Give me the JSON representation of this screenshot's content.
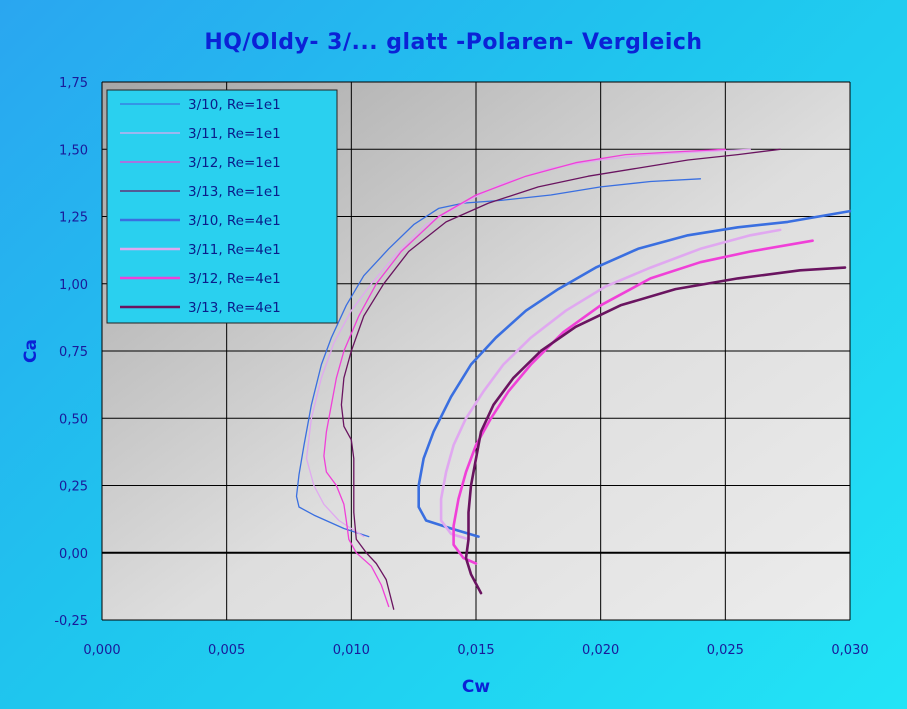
{
  "chart_data": {
    "type": "line",
    "title": "HQ/Oldy- 3/...  glatt -Polaren- Vergleich",
    "xlabel": "Cw",
    "ylabel": "Ca",
    "xlim": [
      0.0,
      0.03
    ],
    "ylim": [
      -0.25,
      1.75
    ],
    "x_ticks": [
      "0,000",
      "0,005",
      "0,010",
      "0,015",
      "0,020",
      "0,025",
      "0,030"
    ],
    "y_ticks": [
      "-0,25",
      "0,00",
      "0,25",
      "0,50",
      "0,75",
      "1,00",
      "1,25",
      "1,50",
      "1,75"
    ],
    "grid": true,
    "legend_position": "top-left",
    "series": [
      {
        "name": "3/10, Re=1e1",
        "color": "#3a6fe0",
        "width": 1.3,
        "points": [
          [
            0.0107,
            0.06
          ],
          [
            0.0097,
            0.09
          ],
          [
            0.0085,
            0.14
          ],
          [
            0.0079,
            0.17
          ],
          [
            0.0078,
            0.21
          ],
          [
            0.0079,
            0.29
          ],
          [
            0.0081,
            0.4
          ],
          [
            0.0084,
            0.55
          ],
          [
            0.0088,
            0.7
          ],
          [
            0.0092,
            0.8
          ],
          [
            0.0098,
            0.92
          ],
          [
            0.0105,
            1.03
          ],
          [
            0.0115,
            1.13
          ],
          [
            0.0125,
            1.22
          ],
          [
            0.0135,
            1.28
          ],
          [
            0.0145,
            1.3
          ],
          [
            0.016,
            1.31
          ],
          [
            0.018,
            1.33
          ],
          [
            0.02,
            1.36
          ],
          [
            0.022,
            1.38
          ],
          [
            0.024,
            1.39
          ]
        ]
      },
      {
        "name": "3/11, Re=1e1",
        "color": "#e0a8f0",
        "width": 1.3,
        "points": [
          [
            0.0105,
            0.06
          ],
          [
            0.0095,
            0.12
          ],
          [
            0.0089,
            0.18
          ],
          [
            0.0085,
            0.25
          ],
          [
            0.0082,
            0.35
          ],
          [
            0.0084,
            0.5
          ],
          [
            0.0088,
            0.65
          ],
          [
            0.0093,
            0.78
          ],
          [
            0.01,
            0.9
          ],
          [
            0.0108,
            1.0
          ],
          [
            0.0118,
            1.11
          ],
          [
            0.013,
            1.22
          ],
          [
            0.0145,
            1.3
          ],
          [
            0.016,
            1.37
          ],
          [
            0.018,
            1.43
          ],
          [
            0.02,
            1.46
          ],
          [
            0.022,
            1.48
          ],
          [
            0.024,
            1.49
          ],
          [
            0.026,
            1.5
          ]
        ]
      },
      {
        "name": "3/12, Re=1e1",
        "color": "#f040d8",
        "width": 1.3,
        "points": [
          [
            0.0115,
            -0.2
          ],
          [
            0.0112,
            -0.12
          ],
          [
            0.0108,
            -0.05
          ],
          [
            0.0102,
            0.0
          ],
          [
            0.0099,
            0.05
          ],
          [
            0.0098,
            0.12
          ],
          [
            0.0097,
            0.18
          ],
          [
            0.0094,
            0.25
          ],
          [
            0.009,
            0.3
          ],
          [
            0.0089,
            0.36
          ],
          [
            0.009,
            0.45
          ],
          [
            0.0092,
            0.55
          ],
          [
            0.0094,
            0.65
          ],
          [
            0.0097,
            0.75
          ],
          [
            0.0103,
            0.88
          ],
          [
            0.011,
            1.0
          ],
          [
            0.012,
            1.12
          ],
          [
            0.0135,
            1.25
          ],
          [
            0.015,
            1.33
          ],
          [
            0.017,
            1.4
          ],
          [
            0.019,
            1.45
          ],
          [
            0.021,
            1.48
          ],
          [
            0.023,
            1.49
          ],
          [
            0.025,
            1.5
          ]
        ]
      },
      {
        "name": "3/13, Re=1e1",
        "color": "#6a1460",
        "width": 1.3,
        "points": [
          [
            0.0117,
            -0.21
          ],
          [
            0.0114,
            -0.1
          ],
          [
            0.011,
            -0.04
          ],
          [
            0.0106,
            0.0
          ],
          [
            0.0102,
            0.05
          ],
          [
            0.0101,
            0.15
          ],
          [
            0.0101,
            0.25
          ],
          [
            0.0101,
            0.35
          ],
          [
            0.01,
            0.42
          ],
          [
            0.0097,
            0.47
          ],
          [
            0.0096,
            0.55
          ],
          [
            0.0097,
            0.65
          ],
          [
            0.01,
            0.75
          ],
          [
            0.0105,
            0.88
          ],
          [
            0.0113,
            1.0
          ],
          [
            0.0123,
            1.12
          ],
          [
            0.0138,
            1.23
          ],
          [
            0.0155,
            1.3
          ],
          [
            0.0175,
            1.36
          ],
          [
            0.0195,
            1.4
          ],
          [
            0.0215,
            1.43
          ],
          [
            0.0235,
            1.46
          ],
          [
            0.0255,
            1.48
          ],
          [
            0.0272,
            1.5
          ]
        ]
      },
      {
        "name": "3/10, Re=4e1",
        "color": "#3a6fe0",
        "width": 2.6,
        "points": [
          [
            0.0151,
            0.06
          ],
          [
            0.014,
            0.09
          ],
          [
            0.013,
            0.12
          ],
          [
            0.0127,
            0.17
          ],
          [
            0.0127,
            0.25
          ],
          [
            0.0129,
            0.35
          ],
          [
            0.0133,
            0.45
          ],
          [
            0.014,
            0.58
          ],
          [
            0.0148,
            0.7
          ],
          [
            0.0158,
            0.8
          ],
          [
            0.017,
            0.9
          ],
          [
            0.0183,
            0.98
          ],
          [
            0.0198,
            1.06
          ],
          [
            0.0215,
            1.13
          ],
          [
            0.0235,
            1.18
          ],
          [
            0.0255,
            1.21
          ],
          [
            0.0275,
            1.23
          ],
          [
            0.03,
            1.27
          ]
        ]
      },
      {
        "name": "3/11, Re=4e1",
        "color": "#e0a8f0",
        "width": 2.6,
        "points": [
          [
            0.0147,
            0.05
          ],
          [
            0.014,
            0.07
          ],
          [
            0.0136,
            0.12
          ],
          [
            0.0136,
            0.2
          ],
          [
            0.0138,
            0.3
          ],
          [
            0.0141,
            0.4
          ],
          [
            0.0146,
            0.5
          ],
          [
            0.0153,
            0.6
          ],
          [
            0.0161,
            0.7
          ],
          [
            0.0172,
            0.8
          ],
          [
            0.0186,
            0.9
          ],
          [
            0.0202,
            0.99
          ],
          [
            0.022,
            1.06
          ],
          [
            0.024,
            1.13
          ],
          [
            0.026,
            1.18
          ],
          [
            0.0272,
            1.2
          ]
        ]
      },
      {
        "name": "3/12, Re=4e1",
        "color": "#f040d8",
        "width": 2.6,
        "points": [
          [
            0.015,
            -0.04
          ],
          [
            0.0145,
            -0.02
          ],
          [
            0.0141,
            0.03
          ],
          [
            0.0141,
            0.1
          ],
          [
            0.0143,
            0.2
          ],
          [
            0.0146,
            0.3
          ],
          [
            0.015,
            0.4
          ],
          [
            0.0156,
            0.5
          ],
          [
            0.0163,
            0.6
          ],
          [
            0.0172,
            0.7
          ],
          [
            0.0185,
            0.82
          ],
          [
            0.02,
            0.92
          ],
          [
            0.022,
            1.02
          ],
          [
            0.024,
            1.08
          ],
          [
            0.026,
            1.12
          ],
          [
            0.0285,
            1.16
          ]
        ]
      },
      {
        "name": "3/13, Re=4e1",
        "color": "#6a1460",
        "width": 2.6,
        "points": [
          [
            0.0152,
            -0.15
          ],
          [
            0.0148,
            -0.08
          ],
          [
            0.0146,
            -0.02
          ],
          [
            0.0147,
            0.05
          ],
          [
            0.0147,
            0.15
          ],
          [
            0.0148,
            0.25
          ],
          [
            0.015,
            0.35
          ],
          [
            0.0152,
            0.45
          ],
          [
            0.0157,
            0.55
          ],
          [
            0.0165,
            0.65
          ],
          [
            0.0176,
            0.75
          ],
          [
            0.019,
            0.84
          ],
          [
            0.0208,
            0.92
          ],
          [
            0.023,
            0.98
          ],
          [
            0.0255,
            1.02
          ],
          [
            0.028,
            1.05
          ],
          [
            0.0298,
            1.06
          ]
        ]
      }
    ]
  }
}
